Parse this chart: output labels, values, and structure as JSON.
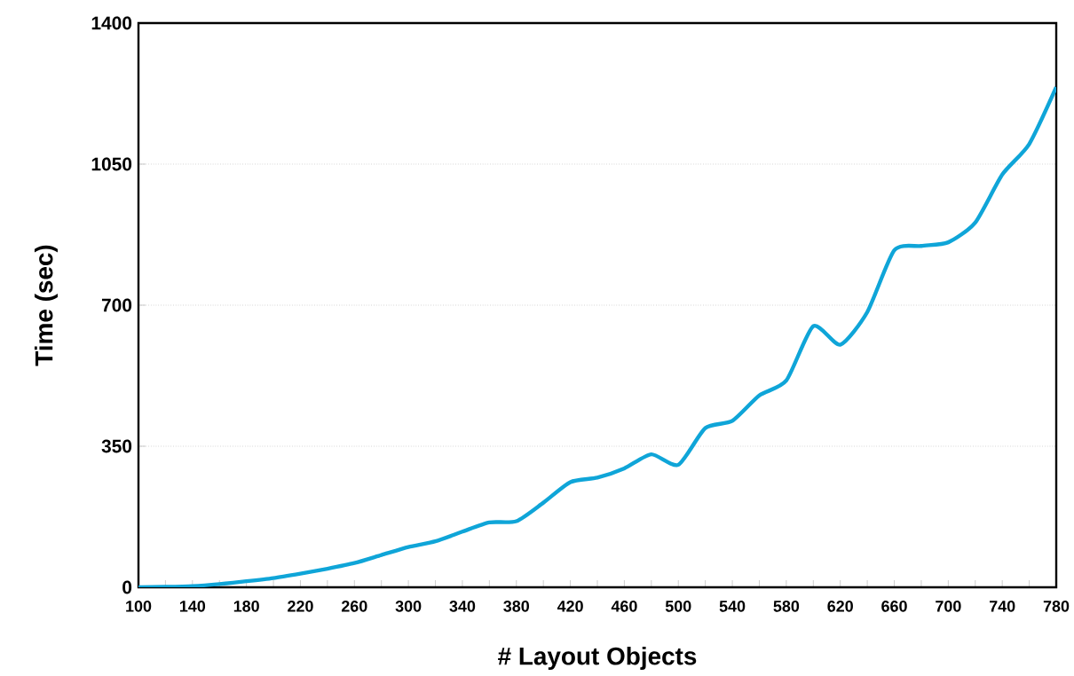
{
  "chart_data": {
    "type": "line",
    "xlabel": "# Layout Objects",
    "ylabel": "Time (sec)",
    "x": [
      100,
      120,
      140,
      160,
      180,
      200,
      220,
      240,
      260,
      280,
      300,
      320,
      340,
      360,
      380,
      400,
      420,
      440,
      460,
      480,
      500,
      520,
      540,
      560,
      580,
      600,
      620,
      640,
      660,
      680,
      700,
      720,
      740,
      760,
      780
    ],
    "series": [
      {
        "color": "#0fa5d8",
        "values": [
          0,
          1,
          3,
          8,
          15,
          23,
          34,
          46,
          60,
          80,
          100,
          114,
          138,
          161,
          164,
          210,
          261,
          272,
          295,
          330,
          304,
          395,
          413,
          476,
          513,
          648,
          602,
          683,
          836,
          847,
          856,
          905,
          1024,
          1100,
          1241
        ]
      }
    ],
    "xlim": [
      100,
      780
    ],
    "ylim": [
      0,
      1400
    ],
    "xticks": [
      100,
      {
        "value": 120,
        "label": null
      },
      140,
      {
        "value": 160,
        "label": null
      },
      180,
      {
        "value": 200,
        "label": null
      },
      220,
      {
        "value": 240,
        "label": null
      },
      260,
      {
        "value": 280,
        "label": null
      },
      300,
      {
        "value": 320,
        "label": null
      },
      340,
      {
        "value": 360,
        "label": null
      },
      380,
      {
        "value": 400,
        "label": null
      },
      420,
      {
        "value": 440,
        "label": null
      },
      460,
      {
        "value": 480,
        "label": null
      },
      500,
      {
        "value": 520,
        "label": null
      },
      540,
      {
        "value": 560,
        "label": null
      },
      580,
      {
        "value": 600,
        "label": null
      },
      620,
      {
        "value": 640,
        "label": null
      },
      660,
      {
        "value": 680,
        "label": null
      },
      700,
      {
        "value": 720,
        "label": null
      },
      740,
      {
        "value": 760,
        "label": null
      },
      780
    ],
    "yticks": [
      0,
      350,
      700,
      1050,
      1400
    ],
    "grid": "y",
    "marker": "none",
    "line_style": "solid"
  }
}
